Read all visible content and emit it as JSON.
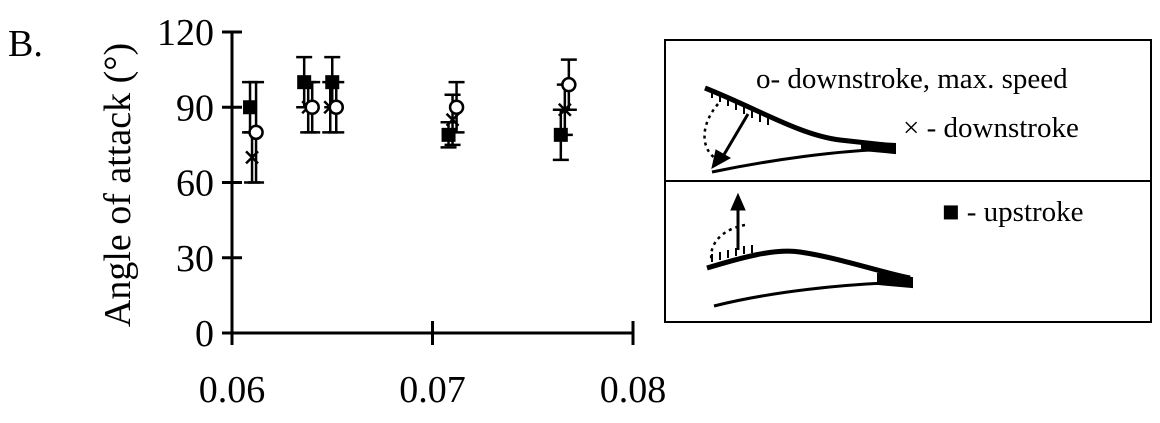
{
  "panel_label": "B.",
  "chart_data": {
    "type": "scatter",
    "title": "",
    "xlabel": "",
    "ylabel": "Angle of attack (°)",
    "xlim": [
      0.06,
      0.08
    ],
    "ylim": [
      0,
      120
    ],
    "x_ticks": [
      "0.06",
      "0.07",
      "0.08"
    ],
    "y_ticks": [
      "0",
      "30",
      "60",
      "90",
      "120"
    ],
    "grid": false,
    "legend_position": "right",
    "series": [
      {
        "name": "downstroke, max. speed",
        "legend_label": "o- downstroke, max. speed",
        "marker": "open-circle",
        "points": [
          {
            "x": 0.0612,
            "y": 80,
            "err": 20
          },
          {
            "x": 0.064,
            "y": 90,
            "err": 10
          },
          {
            "x": 0.0652,
            "y": 90,
            "err": 10
          },
          {
            "x": 0.0712,
            "y": 90,
            "err": 10
          },
          {
            "x": 0.0768,
            "y": 99,
            "err": 10
          }
        ]
      },
      {
        "name": "downstroke",
        "legend_label": "× - downstroke",
        "marker": "cross",
        "points": [
          {
            "x": 0.061,
            "y": 70,
            "err": 10
          },
          {
            "x": 0.0638,
            "y": 90,
            "err": 10
          },
          {
            "x": 0.0649,
            "y": 90,
            "err": 10
          },
          {
            "x": 0.071,
            "y": 85,
            "err": 10
          },
          {
            "x": 0.0766,
            "y": 89,
            "err": 10
          }
        ]
      },
      {
        "name": "upstroke",
        "legend_label": "■ - upstroke",
        "marker": "filled-square",
        "points": [
          {
            "x": 0.0609,
            "y": 90,
            "err": 10
          },
          {
            "x": 0.0636,
            "y": 100,
            "err": 10
          },
          {
            "x": 0.065,
            "y": 100,
            "err": 10
          },
          {
            "x": 0.0708,
            "y": 79,
            "err": 5
          },
          {
            "x": 0.0764,
            "y": 79,
            "err": 10
          }
        ]
      }
    ]
  },
  "legend_box": {
    "downstroke_max_speed": "o- downstroke, max. speed",
    "downstroke": "× - downstroke",
    "upstroke": "■ - upstroke"
  }
}
